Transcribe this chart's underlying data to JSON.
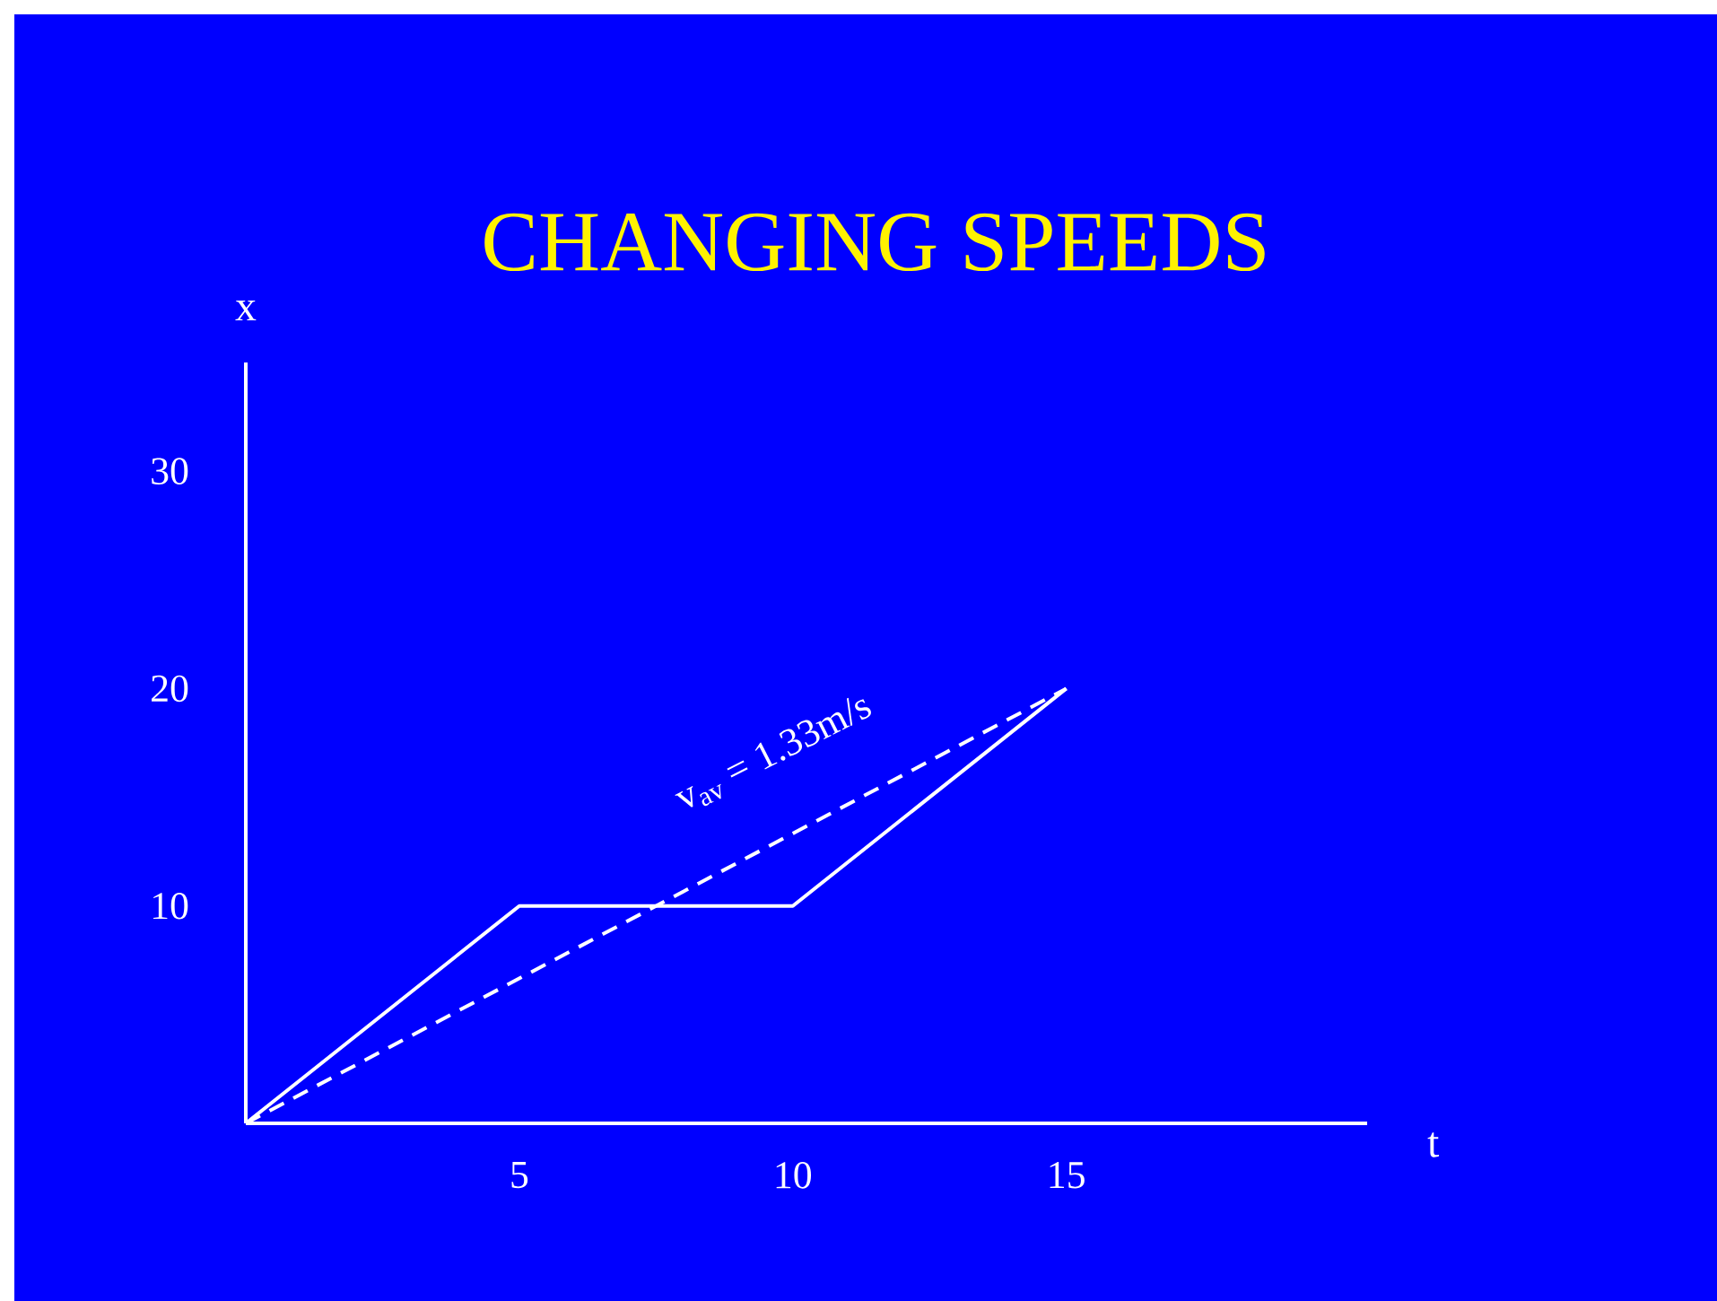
{
  "chart_data": {
    "type": "line",
    "title": "CHANGING SPEEDS",
    "xlabel": "t",
    "ylabel": "x",
    "x": [
      0,
      5,
      10,
      15
    ],
    "series": [
      {
        "color": "#ffffff",
        "values": [
          0,
          10,
          10,
          20
        ],
        "line_style": "solid"
      },
      {
        "color": "#ffffff",
        "x": [
          0,
          15
        ],
        "values": [
          0,
          20
        ],
        "line_style": "dashed"
      }
    ],
    "annotations": [
      "v$_{av}$ = 1.33m/s"
    ],
    "xlim": [
      0,
      20.5
    ],
    "ylim": [
      0,
      35
    ],
    "xticks": [
      5,
      10,
      15
    ],
    "yticks": [
      10,
      20,
      30
    ]
  }
}
